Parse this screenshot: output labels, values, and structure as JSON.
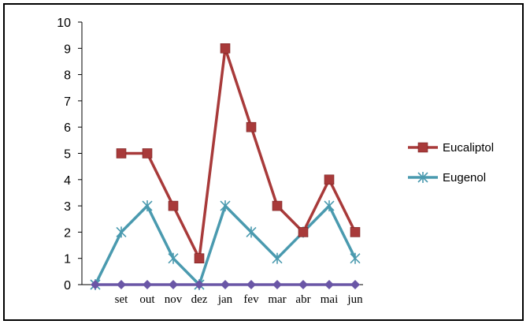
{
  "chart_data": {
    "type": "line",
    "title": "",
    "xlabel": "",
    "ylabel": "",
    "ylim": [
      0,
      10
    ],
    "yticks": [
      0,
      1,
      2,
      3,
      4,
      5,
      6,
      7,
      8,
      9,
      10
    ],
    "categories": [
      "",
      "set",
      "out",
      "nov",
      "dez",
      "jan",
      "fev",
      "mar",
      "abr",
      "mai",
      "jun"
    ],
    "grid": false,
    "legend_position": "right",
    "series": [
      {
        "name": "Eucaliptol",
        "color": "#A83A3A",
        "marker": "square",
        "values": [
          null,
          5,
          5,
          3,
          1,
          9,
          6,
          3,
          2,
          4,
          2
        ]
      },
      {
        "name": "Eugenol",
        "color": "#4A9AAF",
        "marker": "asterisk",
        "values": [
          0,
          2,
          3,
          1,
          0,
          3,
          2,
          1,
          2,
          3,
          1
        ]
      },
      {
        "name": "",
        "color": "#6A56A6",
        "marker": "diamond",
        "in_legend": false,
        "values": [
          0,
          0,
          0,
          0,
          0,
          0,
          0,
          0,
          0,
          0,
          0
        ]
      }
    ]
  }
}
